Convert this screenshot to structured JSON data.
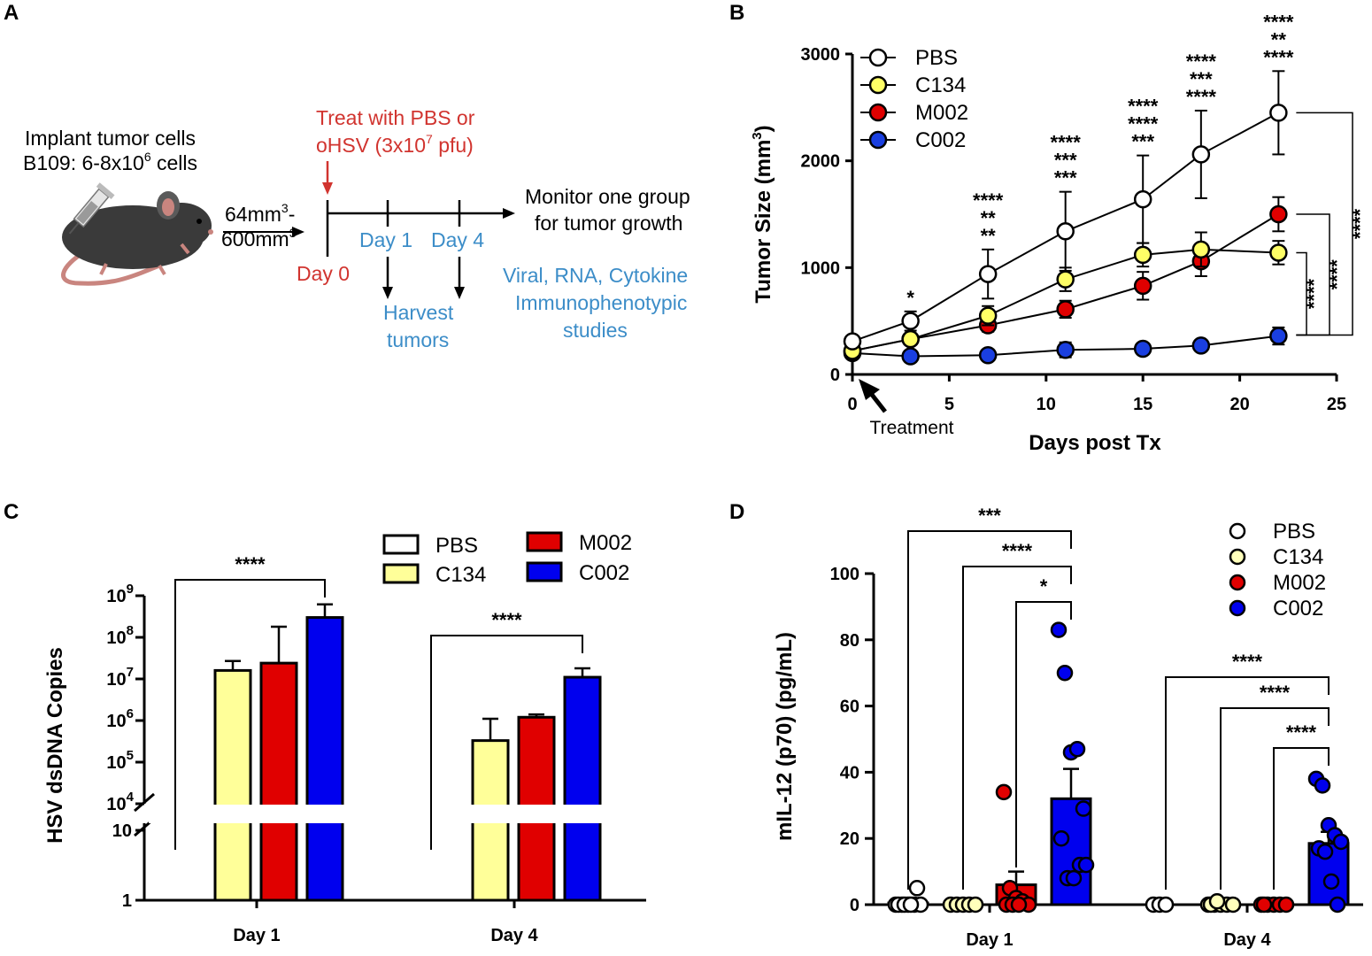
{
  "colors": {
    "PBS": "#ffffff",
    "C134": "#ffff66",
    "C134_bar": "#ffff99",
    "C134_light": "#ffffbb",
    "M002": "#e00000",
    "C002": "#0000ee",
    "C002_B": "#1a3fe0",
    "red_text": "#d1342f",
    "blue_text": "#3c8dc8",
    "yellow_text": "#c8c800",
    "black": "#000000"
  },
  "panel_letters": [
    "A",
    "B",
    "C",
    "D"
  ],
  "panelA": {
    "implant_line1": "Implant tumor cells",
    "implant_line2_pre": "B109: 6-8x10",
    "implant_line2_sup": "6",
    "implant_line2_post": " cells",
    "size_line1_pre": "64mm",
    "size_line1_sup": "3",
    "size_line1_post": "-",
    "size_line2_pre": "600mm",
    "size_line2_sup": "3",
    "treat_line1": "Treat with PBS or",
    "treat_line2_pre": "oHSV (3x10",
    "treat_line2_sup": "7",
    "treat_line2_post": " pfu)",
    "day0": "Day 0",
    "day1": "Day 1",
    "day4": "Day 4",
    "harvest_line1": "Harvest",
    "harvest_line2": "tumors",
    "monitor_line1": "Monitor one group",
    "monitor_line2": "for tumor growth",
    "studies_line1": "Viral, RNA, Cytokine",
    "studies_line2": "Immunophenotypic",
    "studies_line3": "studies"
  },
  "chart_data": [
    {
      "panel": "B",
      "type": "line",
      "title": "",
      "xlabel": "Days post Tx",
      "ylabel_pre": "Tumor Size (mm",
      "ylabel_sup": "3",
      "ylabel_post": ")",
      "xlim": [
        0,
        25
      ],
      "ylim": [
        0,
        3000
      ],
      "xticks": [
        0,
        5,
        10,
        15,
        20,
        25
      ],
      "yticks": [
        0,
        1000,
        2000,
        3000
      ],
      "annotation": "Treatment",
      "series": [
        {
          "name": "PBS",
          "color_key": "PBS",
          "x": [
            0,
            3,
            7,
            11,
            15,
            18,
            22
          ],
          "y": [
            310,
            500,
            940,
            1340,
            1640,
            2060,
            2450
          ],
          "err": [
            0,
            90,
            230,
            370,
            410,
            410,
            390
          ]
        },
        {
          "name": "C134",
          "color_key": "C134",
          "x": [
            0,
            3,
            7,
            11,
            15,
            18,
            22
          ],
          "y": [
            220,
            330,
            550,
            890,
            1120,
            1170,
            1140
          ],
          "err": [
            0,
            40,
            90,
            110,
            110,
            160,
            110
          ]
        },
        {
          "name": "M002",
          "color_key": "M002",
          "x": [
            0,
            3,
            7,
            11,
            15,
            18,
            22
          ],
          "y": [
            220,
            330,
            460,
            610,
            830,
            1060,
            1500
          ],
          "err": [
            0,
            40,
            60,
            80,
            130,
            140,
            160
          ]
        },
        {
          "name": "C002",
          "color_key": "C002_B",
          "x": [
            0,
            3,
            7,
            11,
            15,
            18,
            22
          ],
          "y": [
            200,
            170,
            180,
            230,
            240,
            270,
            360
          ],
          "err": [
            0,
            30,
            30,
            70,
            40,
            30,
            80
          ]
        }
      ],
      "timepoint_sig": [
        {
          "x": 3,
          "lines": [
            {
              "text": "*",
              "color_key": "black"
            }
          ]
        },
        {
          "x": 7,
          "lines": [
            {
              "text": "****",
              "color_key": "black"
            },
            {
              "text": "**",
              "color_key": "yellow_text"
            },
            {
              "text": "**",
              "color_key": "red_text"
            }
          ]
        },
        {
          "x": 11,
          "lines": [
            {
              "text": "****",
              "color_key": "black"
            },
            {
              "text": "***",
              "color_key": "yellow_text"
            },
            {
              "text": "***",
              "color_key": "red_text"
            }
          ]
        },
        {
          "x": 15,
          "lines": [
            {
              "text": "****",
              "color_key": "black"
            },
            {
              "text": "****",
              "color_key": "yellow_text"
            },
            {
              "text": "***",
              "color_key": "red_text"
            }
          ]
        },
        {
          "x": 18,
          "lines": [
            {
              "text": "****",
              "color_key": "black"
            },
            {
              "text": "***",
              "color_key": "yellow_text"
            },
            {
              "text": "****",
              "color_key": "red_text"
            }
          ]
        },
        {
          "x": 22,
          "lines": [
            {
              "text": "****",
              "color_key": "black"
            },
            {
              "text": "**",
              "color_key": "yellow_text"
            },
            {
              "text": "****",
              "color_key": "red_text"
            }
          ]
        }
      ],
      "brackets": [
        {
          "from": "PBS",
          "to": "C002",
          "label": "****"
        },
        {
          "from": "M002",
          "to": "C002",
          "label": "****"
        },
        {
          "from": "C134",
          "to": "C002",
          "label": "****"
        }
      ]
    },
    {
      "panel": "C",
      "type": "bar",
      "title": "",
      "xlabel": "",
      "ylabel": "HSV dsDNA Copies",
      "scale": "log10 with axis break between 10 and 10^4",
      "categories": [
        "Day 1",
        "Day 4"
      ],
      "yticks": [
        {
          "base": "1",
          "exp": ""
        },
        {
          "base": "10",
          "exp": ""
        },
        {
          "base": "10",
          "exp": "4"
        },
        {
          "base": "10",
          "exp": "5"
        },
        {
          "base": "10",
          "exp": "6"
        },
        {
          "base": "10",
          "exp": "7"
        },
        {
          "base": "10",
          "exp": "8"
        },
        {
          "base": "10",
          "exp": "9"
        }
      ],
      "series": [
        {
          "name": "PBS",
          "color_key": "PBS",
          "values": [
            0,
            0
          ],
          "err_upper": [
            0,
            0
          ]
        },
        {
          "name": "C134",
          "color_key": "C134_bar",
          "values": [
            16000000,
            330000
          ],
          "err_upper": [
            27000000,
            1100000
          ]
        },
        {
          "name": "M002",
          "color_key": "M002",
          "values": [
            24000000,
            1200000
          ],
          "err_upper": [
            180000000,
            1400000
          ]
        },
        {
          "name": "C002",
          "color_key": "C002",
          "values": [
            300000000,
            11000000
          ],
          "err_upper": [
            620000000,
            18000000
          ]
        }
      ],
      "brackets": [
        {
          "category": "Day 1",
          "label": "****"
        },
        {
          "category": "Day 4",
          "label": "****"
        }
      ]
    },
    {
      "panel": "D",
      "type": "bar",
      "title": "",
      "xlabel": "",
      "ylabel": "mIL-12 (p70) (pg/mL)",
      "categories": [
        "Day 1",
        "Day 4"
      ],
      "ylim": [
        0,
        100
      ],
      "yticks": [
        0,
        20,
        40,
        60,
        80,
        100
      ],
      "series": [
        {
          "name": "PBS",
          "color_key": "PBS",
          "means": [
            0.5,
            0
          ],
          "sem": [
            0,
            0
          ],
          "points": [
            [
              0,
              0,
              0,
              0,
              0,
              0,
              0,
              0,
              5
            ],
            [
              0,
              0,
              0
            ]
          ]
        },
        {
          "name": "C134",
          "color_key": "C134_light",
          "means": [
            0,
            0
          ],
          "sem": [
            0,
            0
          ],
          "points": [
            [
              0,
              0,
              0,
              0,
              0
            ],
            [
              0,
              0,
              0,
              0,
              0,
              0,
              1
            ]
          ]
        },
        {
          "name": "M002",
          "color_key": "M002",
          "means": [
            6,
            0
          ],
          "sem": [
            4,
            0
          ],
          "points": [
            [
              34,
              5,
              2,
              1,
              0,
              0,
              0,
              0
            ],
            [
              0,
              0,
              0,
              0,
              0,
              0
            ]
          ]
        },
        {
          "name": "C002",
          "color_key": "C002",
          "means": [
            32,
            18.5
          ],
          "sem": [
            9,
            3.5
          ],
          "points": [
            [
              83,
              70,
              46,
              47,
              29,
              20,
              8,
              8,
              12,
              12
            ],
            [
              38,
              36,
              24,
              21,
              19,
              17,
              16,
              7,
              0
            ]
          ]
        }
      ],
      "brackets": [
        {
          "category": "Day 1",
          "from": "PBS",
          "to": "C002",
          "label": "***"
        },
        {
          "category": "Day 1",
          "from": "C134",
          "to": "C002",
          "label": "****"
        },
        {
          "category": "Day 1",
          "from": "M002",
          "to": "C002",
          "label": "*"
        },
        {
          "category": "Day 4",
          "from": "PBS",
          "to": "C002",
          "label": "****"
        },
        {
          "category": "Day 4",
          "from": "C134",
          "to": "C002",
          "label": "****"
        },
        {
          "category": "Day 4",
          "from": "M002",
          "to": "C002",
          "label": "****"
        }
      ]
    }
  ]
}
